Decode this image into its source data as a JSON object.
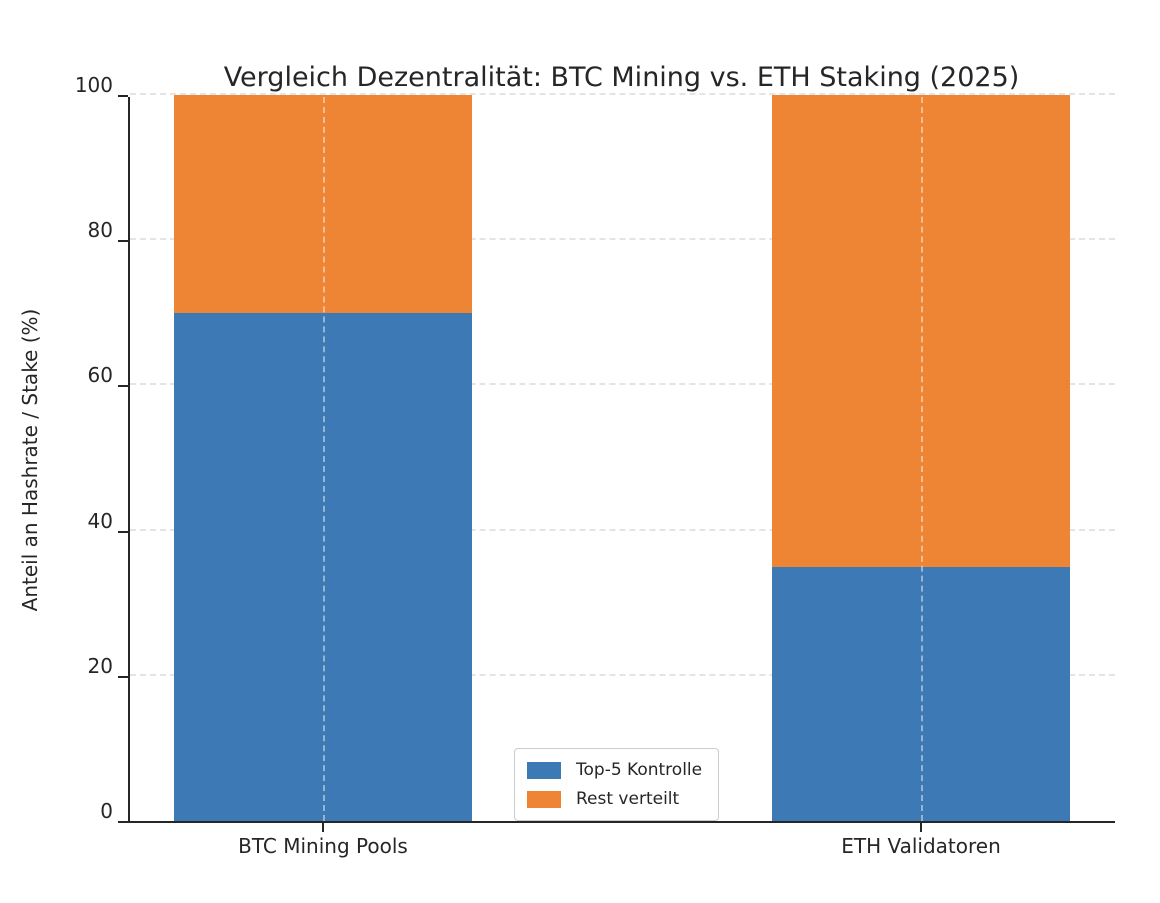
{
  "chart_data": {
    "type": "bar",
    "stacked": true,
    "title": "Vergleich Dezentralität: BTC Mining vs. ETH Staking (2025)",
    "xlabel": "",
    "ylabel": "Anteil an Hashrate / Stake (%)",
    "categories": [
      "BTC Mining Pools",
      "ETH Validatoren"
    ],
    "series": [
      {
        "name": "Top-5 Kontrolle",
        "color": "#3d79b4",
        "values": [
          70,
          35
        ]
      },
      {
        "name": "Rest verteilt",
        "color": "#ee8535",
        "values": [
          30,
          65
        ]
      }
    ],
    "ylim": [
      0,
      100
    ],
    "yticks": [
      0,
      20,
      40,
      60,
      80,
      100
    ],
    "grid": "dashed",
    "legend_position": "lower center"
  },
  "colors": {
    "background": "#ffffff",
    "axis_and_text": "#262626",
    "gridline": "#e4e4e4",
    "legend_border": "#cccccc",
    "series_blue": "#3d79b4",
    "series_orange": "#ee8535"
  }
}
